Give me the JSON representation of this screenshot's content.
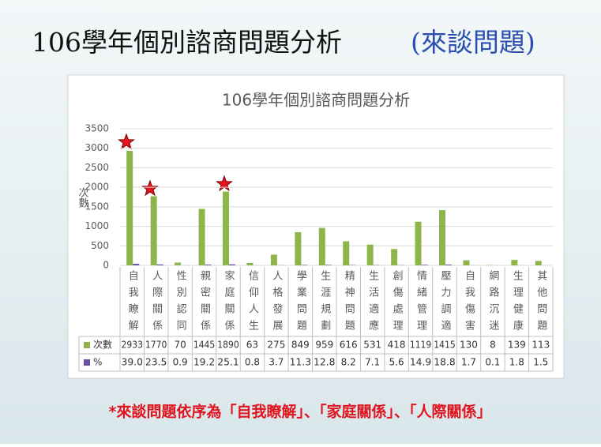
{
  "slide": {
    "title": "106學年個別諮商問題分析",
    "title_note": "(來談問題)",
    "footnote": "*來談問題依序為「自我瞭解」、「家庭關係」、「人際關係」"
  },
  "chart_data": {
    "type": "bar",
    "title": "106學年個別諮商問題分析",
    "y_label": "次數",
    "categories": [
      "自我瞭解",
      "人際關係",
      "性別認同",
      "親密關係",
      "家庭關係",
      "信仰人生",
      "人格發展",
      "學業問題",
      "生涯規劃",
      "精神問題",
      "生活適應",
      "創傷處理",
      "情緒管理",
      "壓力調適",
      "自我傷害",
      "網路沉迷",
      "生理健康",
      "其他問題"
    ],
    "series": [
      {
        "name": "次數",
        "color": "#8db54a",
        "values": [
          2933,
          1770,
          70,
          1445,
          1890,
          63,
          275,
          849,
          959,
          616,
          531,
          418,
          1119,
          1415,
          130,
          8,
          139,
          113
        ]
      },
      {
        "name": "%",
        "color": "#6a4fa0",
        "values": [
          39.0,
          23.5,
          0.9,
          19.2,
          25.1,
          0.8,
          3.7,
          11.3,
          12.8,
          8.2,
          7.1,
          5.6,
          14.9,
          18.8,
          1.7,
          0.1,
          1.8,
          1.5
        ],
        "value_labels": [
          "39.0",
          "23.5",
          "0.9",
          "19.2",
          "25.1",
          "0.8",
          "3.7",
          "11.3",
          "12.8",
          "8.2",
          "7.1",
          "5.6",
          "14.9",
          "18.8",
          "1.7",
          "0.1",
          "1.8",
          "1.5"
        ]
      }
    ],
    "ylim": [
      0,
      3500
    ],
    "yticks": [
      0,
      500,
      1000,
      1500,
      2000,
      2500,
      3000,
      3500
    ],
    "grid": true
  }
}
